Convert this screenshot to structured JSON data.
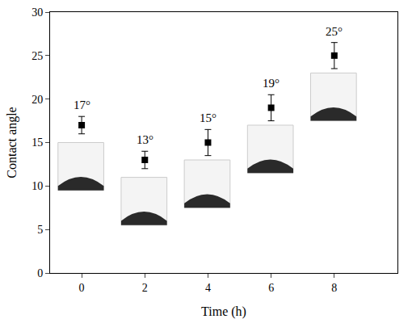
{
  "chart_data": {
    "type": "scatter",
    "x_label": "Time (h)",
    "y_label": "Contact angle",
    "x": [
      0,
      2,
      4,
      6,
      8
    ],
    "values": [
      17,
      13,
      15,
      19,
      25
    ],
    "errors": [
      1,
      1,
      1.5,
      1.5,
      1.5
    ],
    "value_labels": [
      "17°",
      "13°",
      "15°",
      "19°",
      "25°"
    ],
    "data_labels": true,
    "color": "#000000",
    "marker": "square",
    "xlim": [
      -1,
      10
    ],
    "xticks": [
      0,
      2,
      4,
      6,
      8
    ],
    "ylim": [
      0,
      30
    ],
    "yticks": [
      0,
      5,
      10,
      15,
      20,
      25,
      30
    ],
    "grid": false
  }
}
